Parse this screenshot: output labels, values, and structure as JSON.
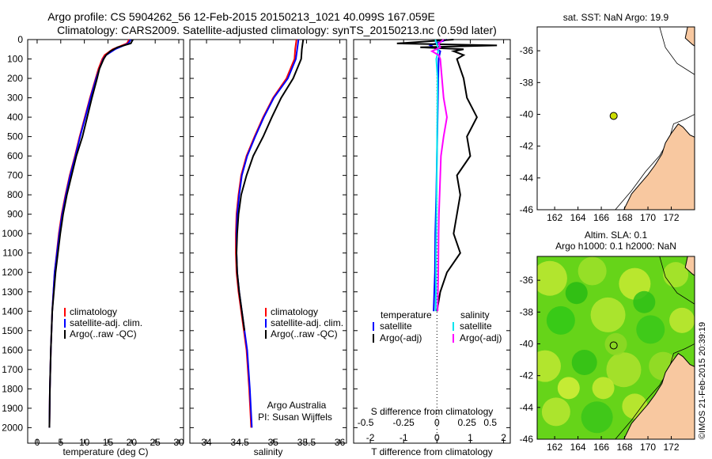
{
  "header": {
    "line1": "Argo profile: CS 5904262_56 12-Feb-2015 20150213_1021 40.099S 167.059E",
    "line2": "Climatology: CARS2009. Satellite-adjusted climatology: synTS_20150213.nc (0.59d later)"
  },
  "colors": {
    "climatology": "#ff0000",
    "satellite": "#0000ff",
    "argo": "#000000",
    "salinity_satellite": "#00e5ee",
    "salinity_argo": "#ff00ff",
    "land": "#f8c8a0",
    "float_marker": "#ccdd00"
  },
  "chart_data": [
    {
      "type": "line",
      "xlabel": "temperature (deg C)",
      "ylabel": "",
      "xlim": [
        -2,
        31
      ],
      "ylim": [
        2080,
        0
      ],
      "xticks": [
        "0",
        "5",
        "10",
        "15",
        "20",
        "25",
        "30"
      ],
      "yticks": [
        "0",
        "100",
        "200",
        "300",
        "400",
        "500",
        "600",
        "700",
        "800",
        "900",
        "1000",
        "1100",
        "1200",
        "1300",
        "1400",
        "1500",
        "1600",
        "1700",
        "1800",
        "1900",
        "2000"
      ],
      "legend": [
        "climatology",
        "satellite-adj. clim.",
        "Argo(..raw -QC)"
      ],
      "series": [
        {
          "name": "climatology",
          "depth": [
            0,
            20,
            50,
            80,
            100,
            150,
            200,
            300,
            400,
            500,
            600,
            700,
            800,
            900,
            1000,
            1200,
            1400,
            1600,
            1800,
            2000
          ],
          "values": [
            19.5,
            19.0,
            16.0,
            14.3,
            13.8,
            13.0,
            12.4,
            11.2,
            10.1,
            9.0,
            8.0,
            6.9,
            6.0,
            5.2,
            4.6,
            3.7,
            3.2,
            2.9,
            2.7,
            2.6
          ]
        },
        {
          "name": "satellite-adj. clim.",
          "depth": [
            0,
            20,
            50,
            80,
            100,
            150,
            200,
            300,
            400,
            500,
            600,
            700,
            800,
            900,
            1000,
            1200,
            1400,
            1600,
            1800,
            2000
          ],
          "values": [
            19.8,
            19.3,
            16.5,
            14.6,
            14.0,
            13.2,
            12.5,
            11.3,
            10.2,
            9.1,
            8.1,
            7.0,
            6.1,
            5.3,
            4.7,
            3.7,
            3.2,
            2.9,
            2.7,
            2.6
          ]
        },
        {
          "name": "Argo(..raw -QC)",
          "depth": [
            0,
            20,
            40,
            60,
            80,
            100,
            150,
            200,
            300,
            400,
            500,
            600,
            700,
            800,
            900,
            1000,
            1200,
            1400,
            1600,
            1800,
            2000
          ],
          "values": [
            20.3,
            19.8,
            17.0,
            15.5,
            14.6,
            14.1,
            13.2,
            12.7,
            11.6,
            10.6,
            9.6,
            8.3,
            7.3,
            6.3,
            5.5,
            4.9,
            3.9,
            3.2,
            2.9,
            2.7,
            2.6
          ]
        }
      ]
    },
    {
      "type": "line",
      "xlabel": "salinity",
      "ylabel": "",
      "xlim": [
        33.75,
        36.1
      ],
      "ylim": [
        2080,
        0
      ],
      "xticks": [
        "34",
        "34.5",
        "35",
        "35.5",
        "36"
      ],
      "legend": [
        "climatology",
        "satellite-adj. clim.",
        "Argo(..raw -QC)"
      ],
      "annotation": [
        "Argo Australia",
        "PI: Susan Wijffels"
      ],
      "series": [
        {
          "name": "climatology",
          "depth": [
            0,
            50,
            100,
            200,
            300,
            400,
            500,
            600,
            700,
            800,
            900,
            1000,
            1100,
            1200,
            1300,
            1400,
            1500,
            1600,
            1800,
            2000
          ],
          "values": [
            35.35,
            35.33,
            35.32,
            35.2,
            35.0,
            34.85,
            34.72,
            34.6,
            34.52,
            34.48,
            34.45,
            34.44,
            34.44,
            34.45,
            34.48,
            34.52,
            34.56,
            34.6,
            34.64,
            34.67
          ]
        },
        {
          "name": "satellite-adj. clim.",
          "depth": [
            0,
            50,
            100,
            200,
            300,
            400,
            500,
            600,
            700,
            800,
            900,
            1000,
            1100,
            1200,
            1300,
            1400,
            1500,
            1600,
            1800,
            2000
          ],
          "values": [
            35.38,
            35.36,
            35.34,
            35.22,
            35.01,
            34.86,
            34.73,
            34.61,
            34.53,
            34.49,
            34.46,
            34.45,
            34.45,
            34.46,
            34.49,
            34.53,
            34.57,
            34.61,
            34.65,
            34.68
          ]
        },
        {
          "name": "Argo(..raw -QC)",
          "depth": [
            0,
            50,
            100,
            200,
            300,
            400,
            500,
            600,
            700,
            800,
            900,
            1000,
            1100,
            1200,
            1300,
            1400,
            1500
          ],
          "values": [
            35.45,
            35.43,
            35.42,
            35.3,
            35.12,
            34.98,
            34.85,
            34.7,
            34.6,
            34.52,
            34.48,
            34.46,
            34.45,
            34.46,
            34.49,
            34.53,
            34.57
          ]
        }
      ]
    },
    {
      "type": "line",
      "xlabel_bottom": "T difference from climatology",
      "xlabel_top": "S difference from climatology",
      "xlim": [
        -2.5,
        2.2
      ],
      "ylim": [
        2080,
        0
      ],
      "xticks": [
        "-2",
        "-1",
        "0",
        "1",
        "2"
      ],
      "xticks_top": [
        "-0.5",
        "-0.25",
        "0",
        "0.25",
        "0.5"
      ],
      "legend_headers": [
        "temperature",
        "salinity"
      ],
      "legend": [
        "satellite",
        "Argo(-adj)",
        "satellite",
        "Argo(-adj)"
      ],
      "series": [
        {
          "name": "satellite",
          "depth": [
            0,
            30,
            60,
            100,
            200,
            400,
            600,
            800,
            1000,
            1200,
            1400
          ],
          "values": [
            0.3,
            -0.2,
            0.1,
            0.05,
            0.04,
            0.02,
            0.0,
            -0.02,
            -0.05,
            -0.06,
            -0.1
          ]
        },
        {
          "name": "Argo(-adj)",
          "depth": [
            0,
            20,
            30,
            40,
            50,
            60,
            80,
            100,
            200,
            300,
            400,
            500,
            600,
            700,
            800,
            1000,
            1100,
            1200,
            1300,
            1400
          ],
          "values": [
            0.5,
            -1.2,
            1.8,
            -0.5,
            0.8,
            0.5,
            0.8,
            0.6,
            0.8,
            0.9,
            1.2,
            0.9,
            1.0,
            0.6,
            0.7,
            0.5,
            0.7,
            0.3,
            0.1,
            0.0
          ]
        },
        {
          "name": "satellite",
          "depth": [
            0,
            50,
            100,
            200,
            400,
            600,
            800,
            1000,
            1100,
            1200,
            1300,
            1400
          ],
          "values": [
            -0.05,
            0.05,
            -0.02,
            0.02,
            0.01,
            0.0,
            -0.01,
            -0.02,
            -0.03,
            -0.03,
            -0.03,
            -0.04
          ]
        },
        {
          "name": "Argo(-adj)",
          "depth": [
            0,
            20,
            40,
            60,
            80,
            100,
            200,
            300,
            400,
            500,
            600,
            700,
            800,
            900,
            1000,
            1200,
            1400
          ],
          "values": [
            0.2,
            0.05,
            0.1,
            -0.15,
            0.05,
            0.1,
            0.15,
            0.2,
            0.3,
            0.2,
            0.12,
            0.1,
            0.08,
            0.06,
            0.05,
            0.04,
            0.02
          ]
        }
      ]
    },
    {
      "type": "scatter",
      "title": "sat. SST: NaN Argo: 19.9",
      "xlim": [
        160.5,
        174
      ],
      "ylim": [
        -46,
        -34.5
      ],
      "xticks": [
        "162",
        "164",
        "166",
        "168",
        "170",
        "172"
      ],
      "yticks": [
        "-36",
        "-38",
        "-40",
        "-42",
        "-44",
        "-46"
      ],
      "points": [
        {
          "x": 167.059,
          "y": -40.099
        }
      ]
    },
    {
      "type": "heatmap",
      "title_line1": "Altim. SLA: 0.1",
      "title_line2": "Argo h1000: 0.1 h2000: NaN",
      "xlim": [
        160.5,
        174
      ],
      "ylim": [
        -46,
        -34.5
      ],
      "xticks": [
        "162",
        "164",
        "166",
        "168",
        "170",
        "172"
      ],
      "yticks": [
        "-36",
        "-38",
        "-40",
        "-42",
        "-44",
        "-46"
      ],
      "points": [
        {
          "x": 167.059,
          "y": -40.099
        }
      ]
    }
  ],
  "footer": {
    "stamp": "©IMOS 21-Feb-2015 20:39:19"
  }
}
